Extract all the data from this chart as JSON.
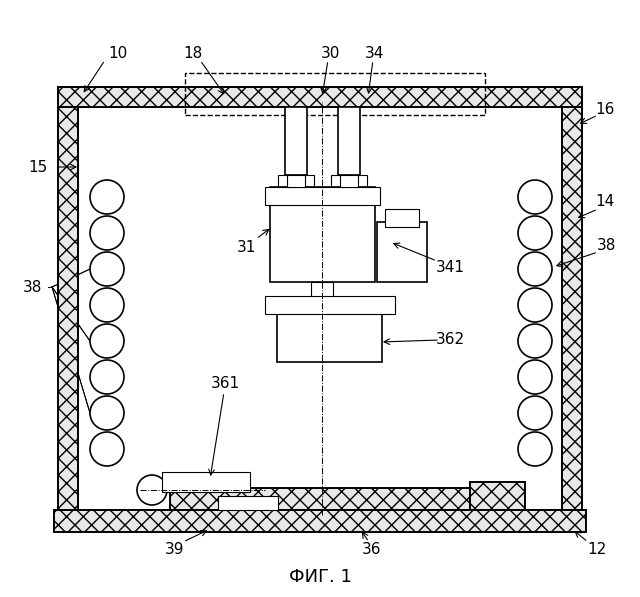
{
  "bg_color": "#ffffff",
  "fig_width": 6.4,
  "fig_height": 5.97,
  "title": "ФИГ. 1",
  "title_fontsize": 13,
  "label_fontsize": 11
}
